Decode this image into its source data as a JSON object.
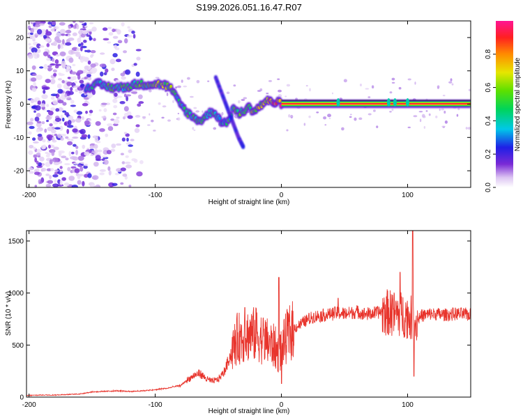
{
  "title": "S199.2026.051.16.47.R07",
  "chart_data": [
    {
      "type": "heatmap",
      "xlabel": "Height of straight line (km)",
      "ylabel": "Frequency (Hz)",
      "xlim": [
        -202,
        150
      ],
      "ylim": [
        -25,
        25
      ],
      "xticks": [
        -200,
        -100,
        0,
        100
      ],
      "xtick_labels": [
        "-200",
        "-100",
        "0",
        "100"
      ],
      "yticks": [
        -20,
        -10,
        0,
        10,
        20
      ],
      "ytick_labels": [
        "-20",
        "-10",
        "0",
        "10",
        "20"
      ],
      "colorbar": {
        "label": "Normalized spectral amplitude",
        "range": [
          0,
          1
        ],
        "ticks": [
          0.0,
          0.2,
          0.4,
          0.6,
          0.8
        ],
        "tick_labels": [
          "0.0",
          "0.2",
          "0.4",
          "0.6",
          "0.8"
        ]
      },
      "ridge": {
        "x": [
          -155,
          -145,
          -135,
          -125,
          -115,
          -105,
          -95,
          -88,
          -82,
          -76,
          -70,
          -64,
          -58,
          -54,
          -50,
          -46,
          -42,
          -38,
          -34,
          -30,
          -26,
          -22,
          -18,
          -12,
          -6,
          0,
          10,
          30,
          60,
          90,
          120,
          150
        ],
        "frequency": [
          5,
          6,
          5,
          5,
          6,
          6,
          6,
          5,
          1,
          -2,
          -4,
          -5,
          -3,
          -2,
          -4,
          -6,
          -5,
          -1,
          -3,
          -2,
          -1,
          -2,
          -1,
          1,
          0.5,
          0.3,
          0.2,
          0.1,
          0.1,
          0.1,
          0.1,
          0.1
        ],
        "amplitude": [
          0.35,
          0.45,
          0.5,
          0.5,
          0.55,
          0.5,
          0.6,
          0.55,
          0.45,
          0.45,
          0.5,
          0.45,
          0.4,
          0.45,
          0.4,
          0.35,
          0.45,
          0.5,
          0.55,
          0.6,
          0.6,
          0.65,
          0.65,
          0.7,
          0.8,
          0.95,
          1.0,
          1.0,
          1.0,
          1.0,
          1.0,
          1.0
        ]
      },
      "diagonal_streak": {
        "x": [
          -52,
          -46,
          -40,
          -34,
          -30
        ],
        "frequency": [
          8,
          2,
          -4,
          -10,
          -13
        ]
      },
      "noise_region": {
        "x_range": [
          -200,
          -110
        ],
        "frequency_range": [
          -25,
          25
        ]
      }
    },
    {
      "type": "line",
      "xlabel": "Height of straight line (km)",
      "ylabel": "SNR (10 * v/v)",
      "xlim": [
        -202,
        150
      ],
      "ylim": [
        0,
        1600
      ],
      "xticks": [
        -200,
        -100,
        0,
        100
      ],
      "xtick_labels": [
        "-200",
        "-100",
        "0",
        "100"
      ],
      "yticks": [
        0,
        500,
        1000,
        1500
      ],
      "ytick_labels": [
        "0",
        "500",
        "1000",
        "1500"
      ],
      "color": "#e8342c",
      "x": [
        -202,
        -190,
        -180,
        -170,
        -160,
        -150,
        -140,
        -130,
        -120,
        -110,
        -100,
        -95,
        -90,
        -85,
        -80,
        -75,
        -70,
        -65,
        -60,
        -55,
        -50,
        -45,
        -40,
        -35,
        -30,
        -25,
        -20,
        -15,
        -10,
        -5,
        -2,
        0,
        2,
        5,
        10,
        15,
        20,
        25,
        30,
        35,
        40,
        45,
        50,
        55,
        60,
        65,
        70,
        75,
        80,
        85,
        90,
        95,
        100,
        103,
        106,
        110,
        115,
        120,
        130,
        140,
        150
      ],
      "values": [
        15,
        20,
        20,
        25,
        30,
        50,
        55,
        60,
        55,
        60,
        70,
        80,
        85,
        100,
        110,
        160,
        200,
        230,
        180,
        150,
        170,
        250,
        420,
        560,
        580,
        600,
        600,
        560,
        520,
        480,
        400,
        480,
        520,
        600,
        660,
        700,
        740,
        770,
        780,
        790,
        800,
        810,
        800,
        810,
        820,
        800,
        800,
        810,
        820,
        810,
        800,
        800,
        780,
        760,
        700,
        780,
        790,
        800,
        790,
        800,
        790
      ],
      "spikes": [
        {
          "x": -29,
          "value": 860
        },
        {
          "x": -20,
          "value": 850
        },
        {
          "x": -2,
          "value": 1150
        },
        {
          "x": 0,
          "value": 130
        },
        {
          "x": 45,
          "value": 950
        },
        {
          "x": 88,
          "value": 980
        },
        {
          "x": 94,
          "value": 1200
        },
        {
          "x": 104,
          "value": 1600
        },
        {
          "x": 105,
          "value": 200
        }
      ]
    }
  ]
}
